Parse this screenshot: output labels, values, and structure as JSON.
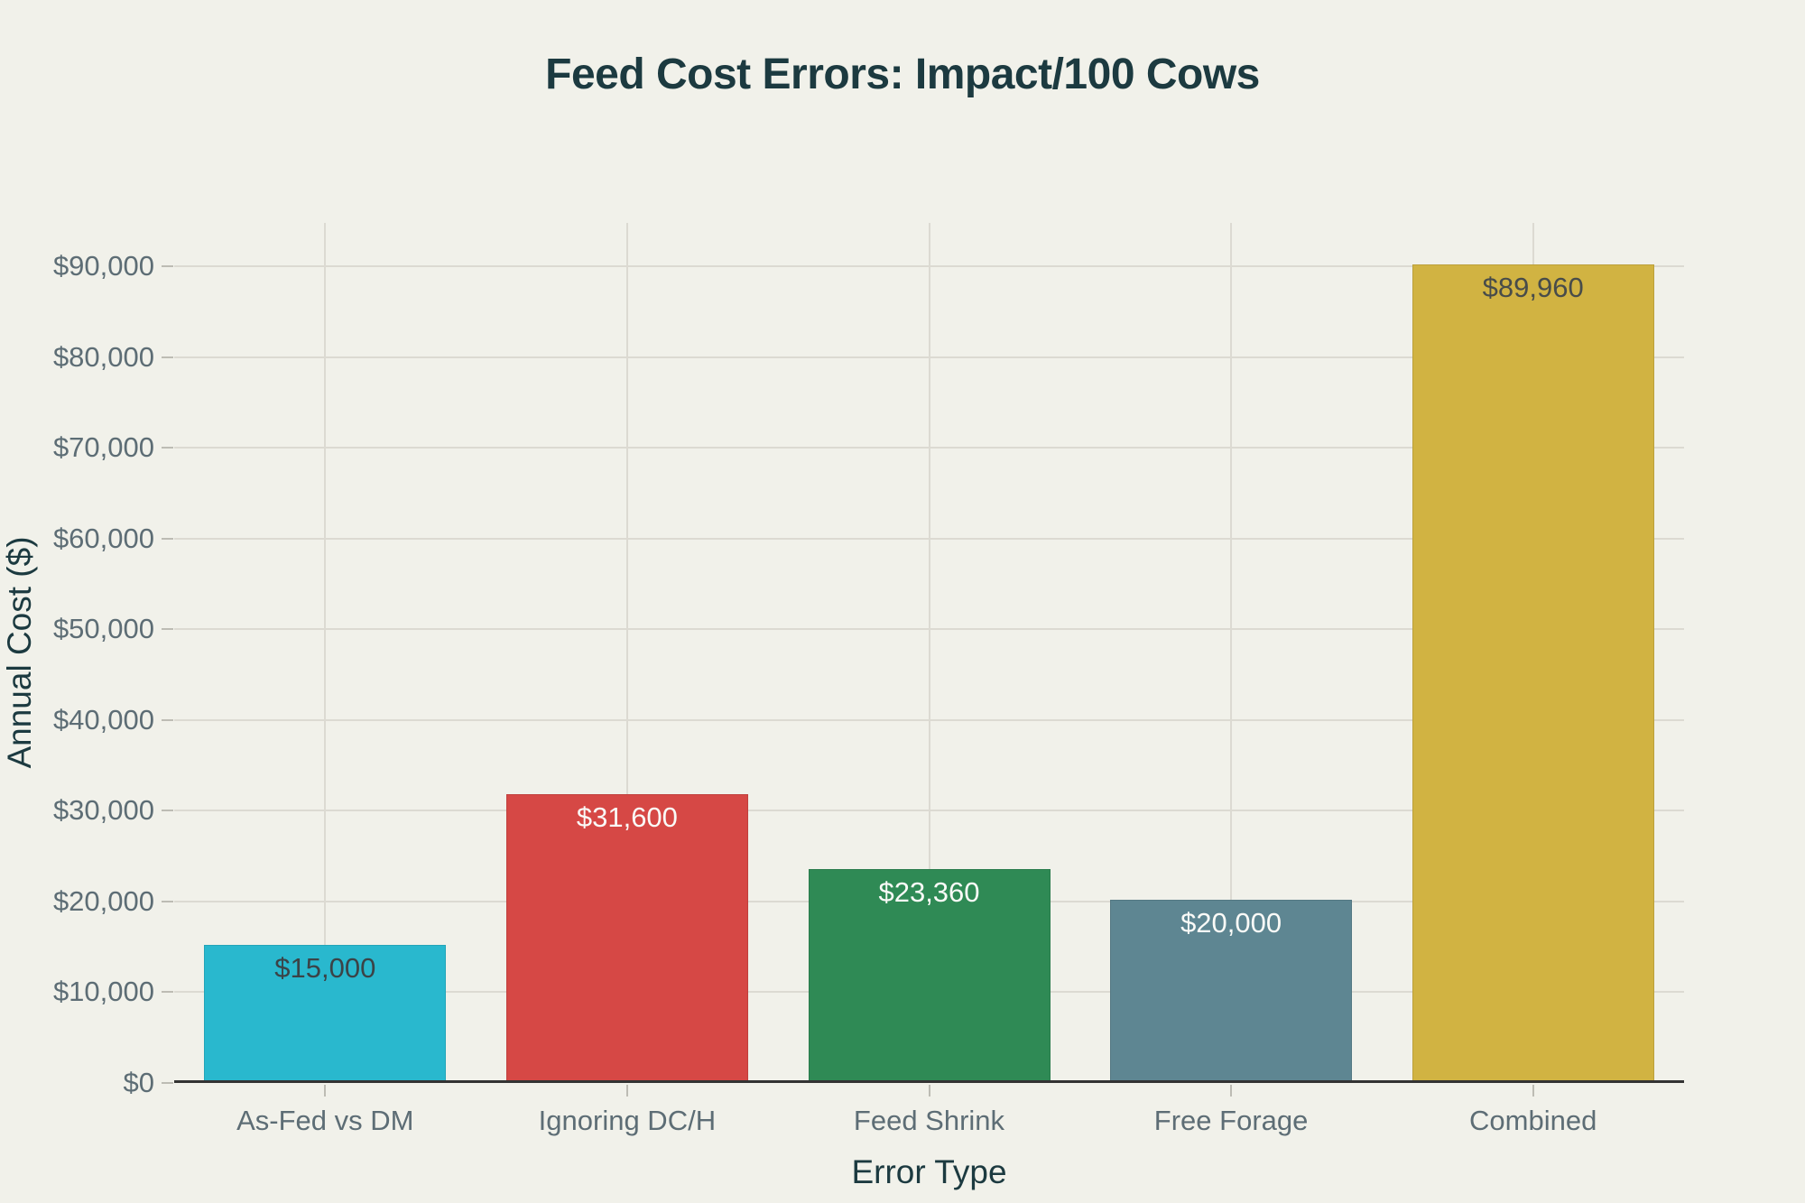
{
  "chart_data": {
    "type": "bar",
    "title": "Feed Cost Errors: Impact/100 Cows",
    "xlabel": "Error Type",
    "ylabel": "Annual Cost ($)",
    "categories": [
      "As-Fed vs DM",
      "Ignoring DC/H",
      "Feed Shrink",
      "Free Forage",
      "Combined"
    ],
    "values": [
      15000,
      31600,
      23360,
      20000,
      89960
    ],
    "value_labels": [
      "$15,000",
      "$31,600",
      "$23,360",
      "$20,000",
      "$89,960"
    ],
    "bar_colors": [
      "#29b8ce",
      "#d64845",
      "#2f8a55",
      "#5e8692",
      "#d1b342"
    ],
    "value_label_colors": [
      "#3b4347",
      "#fafaf7",
      "#fafaf7",
      "#fafaf7",
      "#484c4a"
    ],
    "ylim": [
      0,
      90000
    ],
    "yticks": [
      {
        "value": 0,
        "label": "$0"
      },
      {
        "value": 10000,
        "label": "$10,000"
      },
      {
        "value": 20000,
        "label": "$20,000"
      },
      {
        "value": 30000,
        "label": "$30,000"
      },
      {
        "value": 40000,
        "label": "$40,000"
      },
      {
        "value": 50000,
        "label": "$50,000"
      },
      {
        "value": 60000,
        "label": "$60,000"
      },
      {
        "value": 70000,
        "label": "$70,000"
      },
      {
        "value": 80000,
        "label": "$80,000"
      },
      {
        "value": 90000,
        "label": "$90,000"
      }
    ],
    "grid": true,
    "legend": false
  },
  "colors": {
    "background": "#f1f1ea",
    "grid": "#dcdad2",
    "axis_line": "#333333",
    "tick_text": "#5d6d75",
    "title_text": "#1c3a40"
  }
}
